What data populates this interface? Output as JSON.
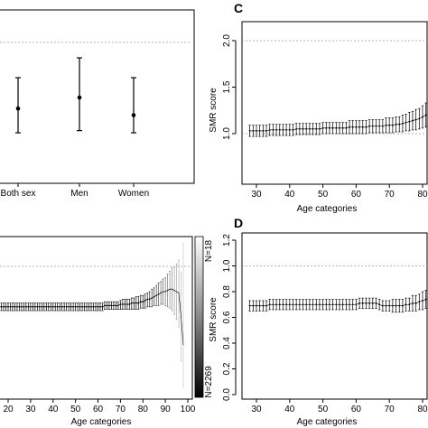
{
  "chart_data": [
    {
      "panel": "",
      "type": "scatter",
      "categories": [
        "Both sex",
        "Men",
        "Women"
      ],
      "values": [
        1.2,
        1.25,
        1.17
      ],
      "lower": [
        1.09,
        1.1,
        1.09
      ],
      "upper": [
        1.34,
        1.43,
        1.34
      ],
      "reference_line": 1.5,
      "grid": false
    },
    {
      "panel": "C",
      "type": "line",
      "xlabel": "Age categories",
      "ylabel": "SMR score",
      "x_ticks": [
        "30",
        "40",
        "50",
        "60",
        "70",
        "80"
      ],
      "y_ticks": [
        "1.0",
        "1.5",
        "2.0"
      ],
      "xlim": [
        28,
        81
      ],
      "ylim": [
        0.75,
        2.2
      ],
      "reference_line": 2.0,
      "series": [
        {
          "x_start": 28,
          "x_end": 81,
          "values": [
            1.03,
            1.03,
            1.03,
            1.03,
            1.03,
            1.03,
            1.04,
            1.04,
            1.04,
            1.04,
            1.04,
            1.04,
            1.04,
            1.04,
            1.05,
            1.05,
            1.05,
            1.05,
            1.05,
            1.05,
            1.05,
            1.05,
            1.06,
            1.06,
            1.06,
            1.06,
            1.06,
            1.06,
            1.06,
            1.06,
            1.07,
            1.07,
            1.07,
            1.07,
            1.07,
            1.07,
            1.08,
            1.08,
            1.08,
            1.08,
            1.08,
            1.09,
            1.09,
            1.09,
            1.1,
            1.1,
            1.11,
            1.12,
            1.13,
            1.14,
            1.15,
            1.16,
            1.18,
            1.2
          ],
          "lower": [
            0.97,
            0.97,
            0.97,
            0.97,
            0.97,
            0.97,
            0.98,
            0.98,
            0.98,
            0.98,
            0.98,
            0.98,
            0.98,
            0.98,
            0.99,
            0.99,
            0.99,
            0.99,
            0.99,
            0.99,
            0.99,
            0.99,
            1.0,
            1.0,
            1.0,
            1.0,
            1.0,
            1.0,
            1.0,
            1.0,
            1.0,
            1.0,
            1.0,
            1.0,
            1.0,
            1.0,
            1.01,
            1.01,
            1.01,
            1.01,
            1.01,
            1.01,
            1.01,
            1.01,
            1.02,
            1.02,
            1.02,
            1.03,
            1.03,
            1.04,
            1.04,
            1.05,
            1.06,
            1.07
          ],
          "upper": [
            1.09,
            1.09,
            1.09,
            1.09,
            1.09,
            1.09,
            1.1,
            1.1,
            1.1,
            1.1,
            1.1,
            1.1,
            1.1,
            1.1,
            1.11,
            1.11,
            1.11,
            1.11,
            1.11,
            1.11,
            1.11,
            1.11,
            1.12,
            1.12,
            1.12,
            1.12,
            1.12,
            1.12,
            1.12,
            1.12,
            1.14,
            1.14,
            1.14,
            1.14,
            1.14,
            1.14,
            1.15,
            1.15,
            1.15,
            1.15,
            1.15,
            1.17,
            1.17,
            1.17,
            1.18,
            1.18,
            1.2,
            1.21,
            1.23,
            1.24,
            1.26,
            1.27,
            1.3,
            1.33
          ]
        }
      ]
    },
    {
      "panel": "",
      "type": "line",
      "xlabel": "Age categories",
      "x_ticks": [
        "20",
        "30",
        "40",
        "50",
        "60",
        "70",
        "80",
        "90",
        "100"
      ],
      "xlim": [
        15,
        101
      ],
      "ylim": [
        0.0,
        1.3
      ],
      "reference_line": 1.0,
      "colorbar": {
        "top_label": "N=18",
        "bottom_label": "N=2269"
      },
      "series": [
        {
          "x_start": 15,
          "x_end": 98,
          "values": [
            0.68,
            0.68,
            0.68,
            0.68,
            0.68,
            0.68,
            0.68,
            0.68,
            0.68,
            0.68,
            0.68,
            0.68,
            0.68,
            0.68,
            0.68,
            0.68,
            0.68,
            0.68,
            0.68,
            0.68,
            0.68,
            0.68,
            0.68,
            0.68,
            0.68,
            0.68,
            0.68,
            0.68,
            0.68,
            0.68,
            0.68,
            0.68,
            0.68,
            0.68,
            0.68,
            0.68,
            0.68,
            0.68,
            0.68,
            0.68,
            0.68,
            0.68,
            0.68,
            0.68,
            0.68,
            0.68,
            0.68,
            0.68,
            0.69,
            0.69,
            0.69,
            0.69,
            0.69,
            0.69,
            0.69,
            0.7,
            0.7,
            0.7,
            0.7,
            0.7,
            0.71,
            0.71,
            0.71,
            0.71,
            0.72,
            0.72,
            0.73,
            0.74,
            0.74,
            0.75,
            0.76,
            0.77,
            0.78,
            0.79,
            0.8,
            0.8,
            0.81,
            0.82,
            0.82,
            0.81,
            0.8,
            0.79,
            0.6,
            0.38
          ],
          "lower": [
            0.65,
            0.65,
            0.65,
            0.65,
            0.65,
            0.65,
            0.65,
            0.65,
            0.65,
            0.65,
            0.65,
            0.65,
            0.65,
            0.65,
            0.65,
            0.65,
            0.65,
            0.65,
            0.65,
            0.65,
            0.65,
            0.65,
            0.65,
            0.65,
            0.65,
            0.65,
            0.65,
            0.65,
            0.65,
            0.65,
            0.65,
            0.65,
            0.65,
            0.65,
            0.65,
            0.65,
            0.65,
            0.65,
            0.65,
            0.65,
            0.65,
            0.65,
            0.65,
            0.65,
            0.65,
            0.65,
            0.65,
            0.65,
            0.66,
            0.66,
            0.66,
            0.66,
            0.66,
            0.66,
            0.66,
            0.66,
            0.66,
            0.66,
            0.66,
            0.66,
            0.66,
            0.66,
            0.66,
            0.66,
            0.67,
            0.67,
            0.67,
            0.68,
            0.68,
            0.68,
            0.69,
            0.69,
            0.69,
            0.7,
            0.7,
            0.69,
            0.68,
            0.67,
            0.65,
            0.62,
            0.58,
            0.52,
            0.25,
            0.05
          ],
          "upper": [
            0.71,
            0.71,
            0.71,
            0.71,
            0.71,
            0.71,
            0.71,
            0.71,
            0.71,
            0.71,
            0.71,
            0.71,
            0.71,
            0.71,
            0.71,
            0.71,
            0.71,
            0.71,
            0.71,
            0.71,
            0.71,
            0.71,
            0.71,
            0.71,
            0.71,
            0.71,
            0.71,
            0.71,
            0.71,
            0.71,
            0.71,
            0.71,
            0.71,
            0.71,
            0.71,
            0.71,
            0.71,
            0.71,
            0.71,
            0.71,
            0.71,
            0.71,
            0.71,
            0.71,
            0.71,
            0.71,
            0.71,
            0.71,
            0.72,
            0.72,
            0.72,
            0.72,
            0.72,
            0.72,
            0.72,
            0.73,
            0.74,
            0.74,
            0.74,
            0.74,
            0.75,
            0.75,
            0.76,
            0.76,
            0.77,
            0.77,
            0.78,
            0.79,
            0.8,
            0.82,
            0.83,
            0.85,
            0.87,
            0.88,
            0.9,
            0.91,
            0.94,
            0.96,
            0.99,
            1.0,
            1.02,
            1.05,
            0.95,
            1.18
          ]
        }
      ]
    },
    {
      "panel": "D",
      "type": "line",
      "xlabel": "Age categories",
      "ylabel": "SMR score",
      "x_ticks": [
        "30",
        "40",
        "50",
        "60",
        "70",
        "80"
      ],
      "y_ticks": [
        "0.0",
        "0.2",
        "0.4",
        "0.6",
        "0.8",
        "1.0",
        "1.2"
      ],
      "xlim": [
        28,
        81
      ],
      "ylim": [
        -0.02,
        1.25
      ],
      "reference_line": 1.0,
      "series": [
        {
          "x_start": 28,
          "x_end": 81,
          "values": [
            0.69,
            0.69,
            0.69,
            0.69,
            0.69,
            0.69,
            0.7,
            0.7,
            0.7,
            0.7,
            0.7,
            0.7,
            0.7,
            0.7,
            0.7,
            0.7,
            0.7,
            0.7,
            0.7,
            0.7,
            0.7,
            0.7,
            0.7,
            0.7,
            0.7,
            0.7,
            0.7,
            0.7,
            0.7,
            0.7,
            0.7,
            0.7,
            0.7,
            0.71,
            0.71,
            0.71,
            0.71,
            0.71,
            0.71,
            0.7,
            0.69,
            0.69,
            0.69,
            0.69,
            0.69,
            0.69,
            0.69,
            0.7,
            0.7,
            0.71,
            0.71,
            0.72,
            0.73,
            0.74
          ],
          "lower": [
            0.65,
            0.65,
            0.65,
            0.65,
            0.65,
            0.65,
            0.66,
            0.66,
            0.66,
            0.66,
            0.66,
            0.66,
            0.66,
            0.66,
            0.66,
            0.66,
            0.66,
            0.66,
            0.66,
            0.66,
            0.66,
            0.66,
            0.66,
            0.66,
            0.66,
            0.66,
            0.66,
            0.66,
            0.66,
            0.66,
            0.66,
            0.66,
            0.66,
            0.67,
            0.67,
            0.67,
            0.67,
            0.67,
            0.67,
            0.66,
            0.65,
            0.65,
            0.65,
            0.64,
            0.64,
            0.64,
            0.64,
            0.65,
            0.65,
            0.65,
            0.65,
            0.66,
            0.66,
            0.67
          ],
          "upper": [
            0.73,
            0.73,
            0.73,
            0.73,
            0.73,
            0.73,
            0.74,
            0.74,
            0.74,
            0.74,
            0.74,
            0.74,
            0.74,
            0.74,
            0.74,
            0.74,
            0.74,
            0.74,
            0.74,
            0.74,
            0.74,
            0.74,
            0.74,
            0.74,
            0.74,
            0.74,
            0.74,
            0.74,
            0.74,
            0.74,
            0.74,
            0.74,
            0.74,
            0.75,
            0.75,
            0.75,
            0.75,
            0.75,
            0.75,
            0.74,
            0.73,
            0.73,
            0.73,
            0.74,
            0.74,
            0.74,
            0.74,
            0.75,
            0.75,
            0.77,
            0.77,
            0.78,
            0.8,
            0.81
          ]
        }
      ]
    }
  ]
}
